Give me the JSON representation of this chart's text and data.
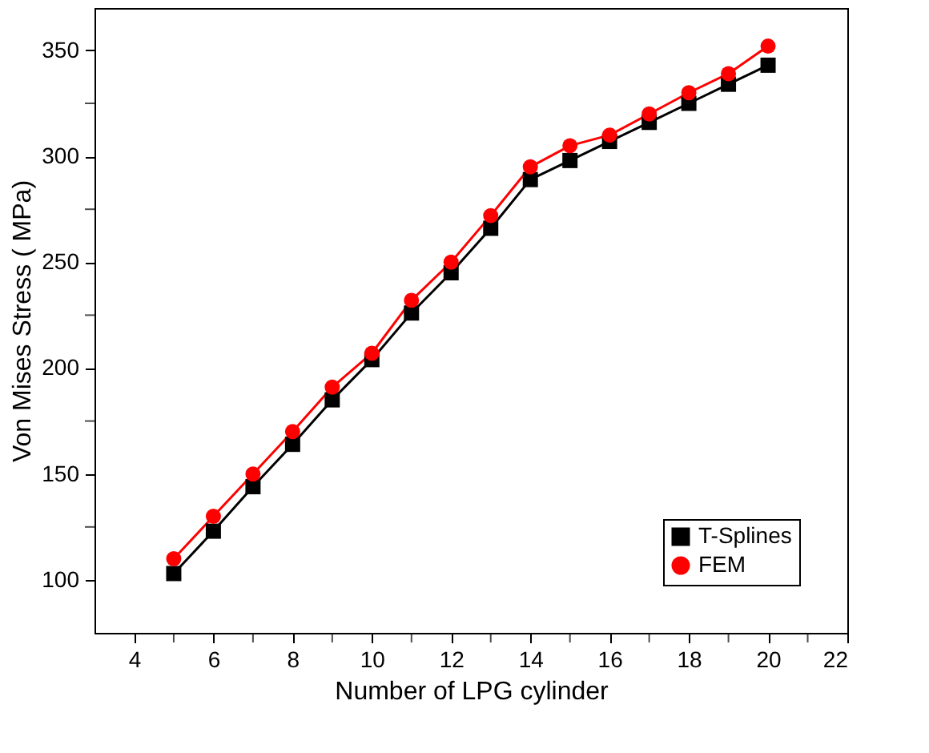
{
  "chart_data": {
    "type": "line",
    "xlabel": "Number of LPG cylinder",
    "ylabel": "Von Mises Stress ( MPa)",
    "x": [
      5,
      6,
      7,
      8,
      9,
      10,
      11,
      12,
      13,
      14,
      15,
      16,
      17,
      18,
      19,
      20
    ],
    "series": [
      {
        "name": "T-Splines",
        "color": "#000000",
        "marker": "square",
        "values": [
          103,
          123,
          144,
          164,
          185,
          204,
          226,
          245,
          266,
          289,
          298,
          307,
          316,
          325,
          334,
          343
        ]
      },
      {
        "name": "FEM",
        "color": "#ff0000",
        "marker": "circle",
        "values": [
          110,
          130,
          150,
          170,
          191,
          207,
          232,
          250,
          272,
          295,
          305,
          310,
          320,
          330,
          339,
          352
        ]
      }
    ],
    "xlim": [
      3,
      22
    ],
    "xticks": [
      4,
      6,
      8,
      10,
      12,
      14,
      16,
      18,
      20,
      22
    ],
    "ylim": [
      75,
      370
    ],
    "yticks": [
      100,
      150,
      200,
      250,
      300,
      350
    ],
    "legend": "bottom right",
    "line_style": "solid"
  }
}
